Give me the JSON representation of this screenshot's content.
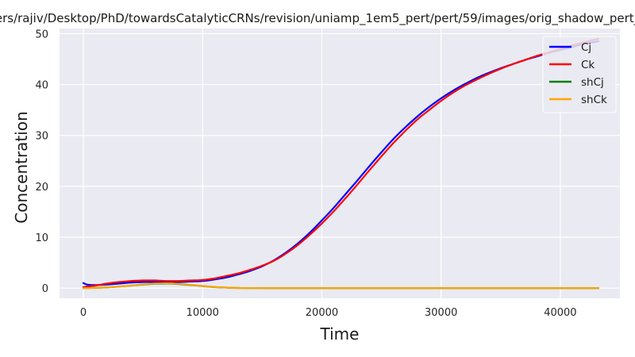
{
  "chart_data": {
    "type": "line",
    "title": "ers/rajiv/Desktop/PhD/towardsCatalyticCRNs/revision/uniamp_1em5_pert/pert/59/images/orig_shadow_pert_",
    "xlabel": "Time",
    "ylabel": "Concentration",
    "xlim": [
      -2000,
      45000
    ],
    "ylim": [
      -2,
      51
    ],
    "xticks": [
      0,
      10000,
      20000,
      30000,
      40000
    ],
    "yticks": [
      0,
      10,
      20,
      30,
      40,
      50
    ],
    "grid": true,
    "legend_position": "top-right",
    "background": "#eaeaf2",
    "series": [
      {
        "name": "Cj",
        "color": "#0000ff",
        "x": [
          0,
          300,
          1000,
          2000,
          3000,
          4000,
          5000,
          6000,
          7000,
          8000,
          9000,
          10000,
          11000,
          12000,
          13000,
          14000,
          15000,
          16000,
          17000,
          18000,
          19000,
          20000,
          21000,
          22000,
          23000,
          24000,
          25000,
          26000,
          27000,
          28000,
          29000,
          30000,
          31000,
          32000,
          33000,
          34000,
          35000,
          36000,
          37000,
          38000,
          39000,
          40000,
          41000,
          42000,
          43200
        ],
        "y": [
          1.0,
          0.7,
          0.6,
          0.7,
          0.9,
          1.1,
          1.2,
          1.2,
          1.2,
          1.2,
          1.3,
          1.4,
          1.7,
          2.1,
          2.7,
          3.4,
          4.3,
          5.5,
          7.0,
          8.8,
          10.9,
          13.3,
          15.8,
          18.5,
          21.2,
          24.0,
          26.7,
          29.3,
          31.6,
          33.7,
          35.6,
          37.3,
          38.8,
          40.1,
          41.3,
          42.3,
          43.2,
          44.0,
          44.8,
          45.5,
          46.2,
          46.8,
          47.4,
          48.0,
          48.5
        ]
      },
      {
        "name": "Ck",
        "color": "#ff0000",
        "x": [
          0,
          300,
          1000,
          2000,
          3000,
          4000,
          5000,
          6000,
          7000,
          8000,
          9000,
          10000,
          11000,
          12000,
          13000,
          14000,
          15000,
          16000,
          17000,
          18000,
          19000,
          20000,
          21000,
          22000,
          23000,
          24000,
          25000,
          26000,
          27000,
          28000,
          29000,
          30000,
          31000,
          32000,
          33000,
          34000,
          35000,
          36000,
          37000,
          38000,
          39000,
          40000,
          41000,
          42000,
          43200
        ],
        "y": [
          0.2,
          0.3,
          0.5,
          0.9,
          1.2,
          1.4,
          1.5,
          1.5,
          1.4,
          1.4,
          1.5,
          1.6,
          1.9,
          2.4,
          2.9,
          3.6,
          4.4,
          5.4,
          6.8,
          8.5,
          10.5,
          12.7,
          15.1,
          17.7,
          20.4,
          23.2,
          25.9,
          28.5,
          30.9,
          33.1,
          35.0,
          36.8,
          38.4,
          39.8,
          41.0,
          42.1,
          43.1,
          44.0,
          44.8,
          45.6,
          46.3,
          47.0,
          47.7,
          48.3,
          49.0
        ]
      },
      {
        "name": "shCj",
        "color": "#008000",
        "x": [
          0,
          1000,
          2000,
          3000,
          4000,
          5000,
          6000,
          7000,
          8000,
          9000,
          10000,
          11000,
          12000,
          13000,
          15000,
          20000,
          30000,
          43200
        ],
        "y": [
          0.0,
          0.05,
          0.15,
          0.3,
          0.5,
          0.7,
          0.85,
          0.9,
          0.8,
          0.6,
          0.4,
          0.2,
          0.1,
          0.03,
          0.0,
          0.0,
          0.0,
          0.0
        ]
      },
      {
        "name": "shCk",
        "color": "#ffa500",
        "x": [
          0,
          1000,
          2000,
          3000,
          4000,
          5000,
          6000,
          7000,
          8000,
          9000,
          10000,
          11000,
          12000,
          13000,
          15000,
          20000,
          30000,
          43200
        ],
        "y": [
          0.0,
          0.05,
          0.15,
          0.3,
          0.5,
          0.75,
          0.9,
          0.95,
          0.85,
          0.65,
          0.42,
          0.22,
          0.1,
          0.03,
          0.0,
          0.0,
          0.0,
          0.0
        ]
      }
    ]
  }
}
